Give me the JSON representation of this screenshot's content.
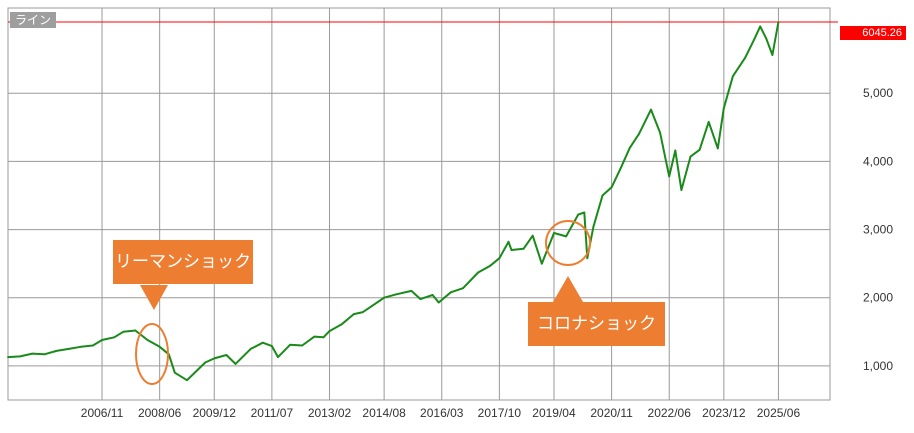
{
  "mode_label": "ライン",
  "colors": {
    "line": "#1a8a1a",
    "grid": "#9a9a9a",
    "last_price": "#ff0000",
    "callout": "#ed7d31",
    "mode_tag": "#9e9e9e"
  },
  "chart_data": {
    "type": "line",
    "title": "",
    "xlabel": "",
    "ylabel": "",
    "x_ticks": [
      "2006/11",
      "2008/06",
      "2009/12",
      "2011/07",
      "2013/02",
      "2014/08",
      "2016/03",
      "2017/10",
      "2019/04",
      "2020/11",
      "2022/06",
      "2023/12",
      "2025/06"
    ],
    "y_ticks": [
      "1,000",
      "2,000",
      "3,000",
      "4,000",
      "5,000"
    ],
    "ylim": [
      500,
      6250
    ],
    "xlim": [
      "2004/04",
      "2026/11"
    ],
    "grid": true,
    "last_price": "6045.26",
    "series": [
      {
        "x": [
          "2004/04",
          "2004/08",
          "2004/12",
          "2005/04",
          "2005/08",
          "2005/12",
          "2006/04",
          "2006/08",
          "2006/11",
          "2007/03",
          "2007/06",
          "2007/10",
          "2008/02",
          "2008/06",
          "2008/09",
          "2008/11",
          "2009/03",
          "2009/06",
          "2009/09",
          "2009/12",
          "2010/04",
          "2010/07",
          "2010/12",
          "2011/04",
          "2011/07",
          "2011/09",
          "2012/01",
          "2012/05",
          "2012/09",
          "2012/12",
          "2013/02",
          "2013/06",
          "2013/10",
          "2014/01",
          "2014/04",
          "2014/08",
          "2014/12",
          "2015/05",
          "2015/08",
          "2015/12",
          "2016/02",
          "2016/06",
          "2016/10",
          "2017/03",
          "2017/07",
          "2017/10",
          "2018/01",
          "2018/02",
          "2018/06",
          "2018/09",
          "2018/12",
          "2019/04",
          "2019/08",
          "2019/12",
          "2020/02",
          "2020/03",
          "2020/05",
          "2020/08",
          "2020/11",
          "2021/02",
          "2021/05",
          "2021/08",
          "2021/12",
          "2022/03",
          "2022/06",
          "2022/08",
          "2022/10",
          "2023/01",
          "2023/04",
          "2023/07",
          "2023/10",
          "2023/12",
          "2024/03",
          "2024/07",
          "2024/10",
          "2024/12",
          "2025/02",
          "2025/04",
          "2025/06"
        ],
        "values": [
          1130,
          1140,
          1180,
          1170,
          1220,
          1250,
          1280,
          1300,
          1380,
          1420,
          1500,
          1520,
          1380,
          1280,
          1170,
          900,
          790,
          920,
          1050,
          1110,
          1160,
          1030,
          1250,
          1340,
          1290,
          1130,
          1310,
          1300,
          1430,
          1420,
          1510,
          1610,
          1760,
          1790,
          1880,
          2000,
          2050,
          2100,
          1980,
          2040,
          1930,
          2080,
          2140,
          2370,
          2470,
          2580,
          2820,
          2700,
          2720,
          2910,
          2500,
          2950,
          2900,
          3220,
          3250,
          2580,
          3040,
          3500,
          3620,
          3900,
          4200,
          4400,
          4760,
          4420,
          3780,
          4160,
          3580,
          4070,
          4170,
          4580,
          4190,
          4780,
          5250,
          5520,
          5790,
          5980,
          5800,
          5560,
          6045
        ]
      }
    ],
    "annotations": [
      "リーマンショック",
      "コロナショック"
    ]
  }
}
